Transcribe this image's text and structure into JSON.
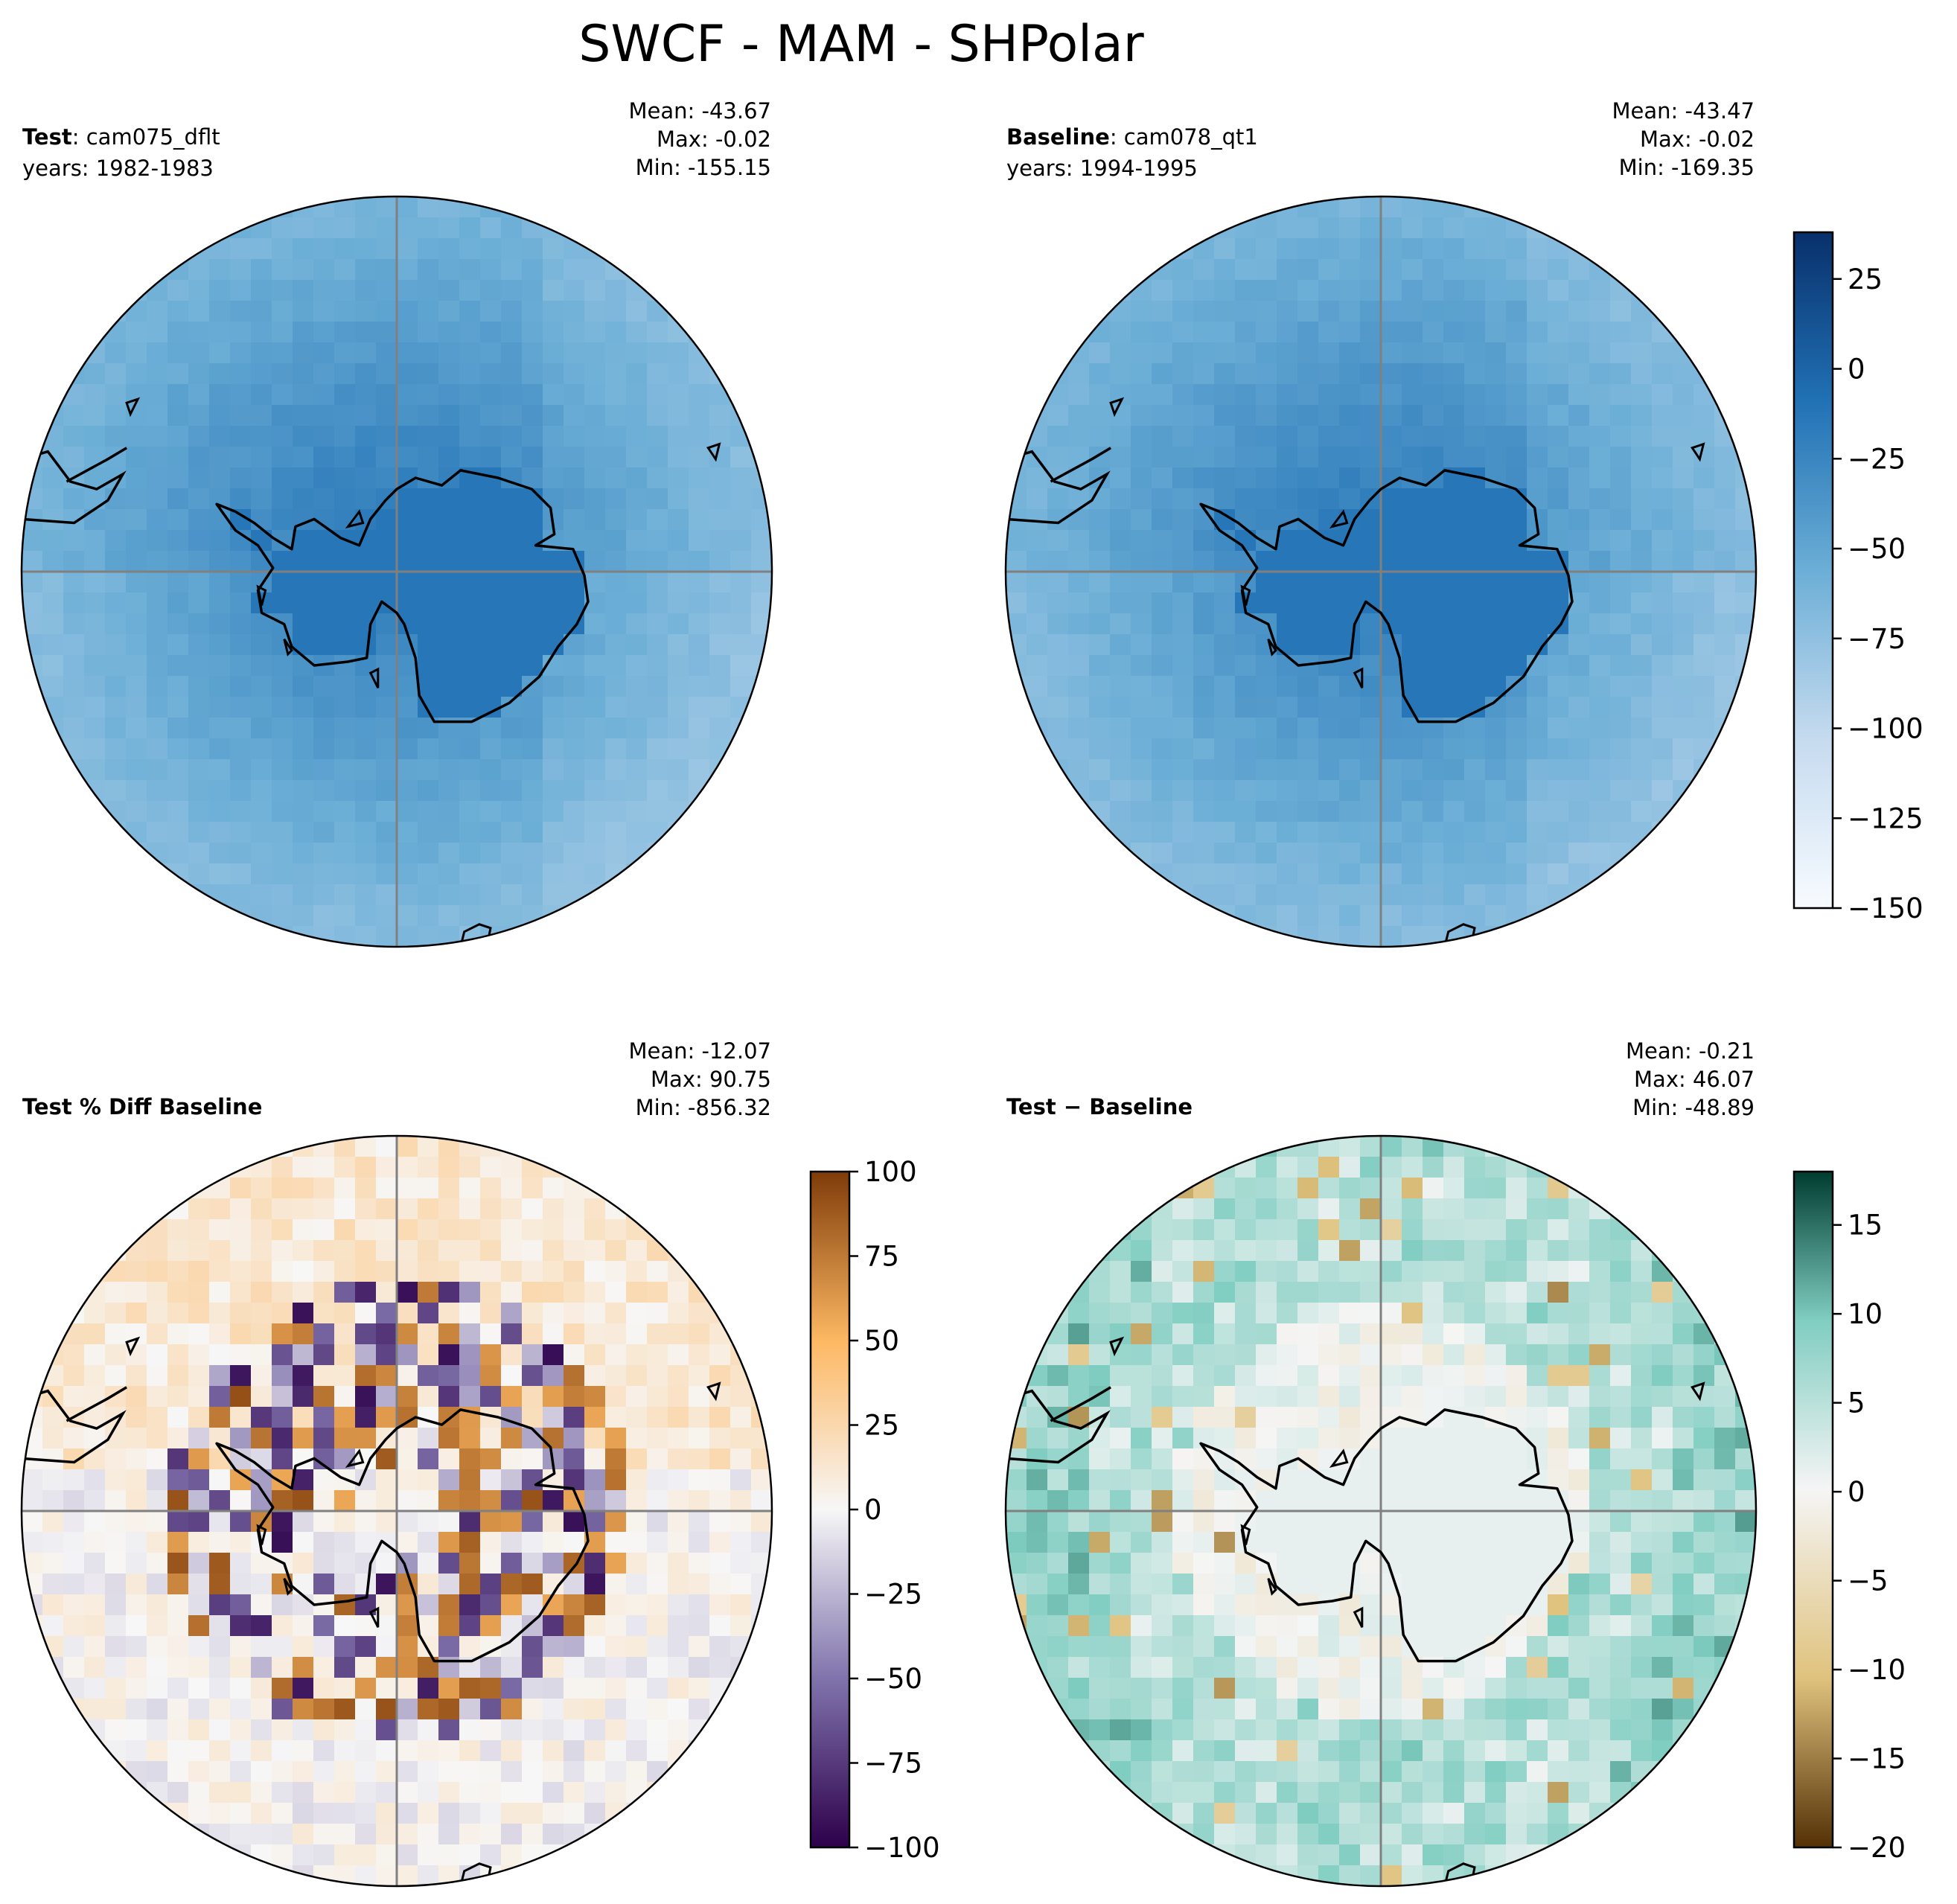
{
  "title": "SWCF - MAM - SHPolar",
  "chart_data": [
    {
      "type": "heatmap",
      "panel": "test",
      "label_bold": "Test",
      "label_rest": ": cam075_dflt",
      "years": "years: 1982-1983",
      "stats": [
        "Mean: -43.67",
        "Max: -0.02",
        "Min: -155.15"
      ],
      "projection": "south-polar-stereo",
      "colormap": "Blues_r",
      "pattern": "swcf",
      "seed": 11
    },
    {
      "type": "heatmap",
      "panel": "baseline",
      "label_bold": "Baseline",
      "label_rest": ": cam078_qt1",
      "years": "years: 1994-1995",
      "stats": [
        "Mean: -43.47",
        "Max: -0.02",
        "Min: -169.35"
      ],
      "projection": "south-polar-stereo",
      "colormap": "Blues_r",
      "pattern": "swcf",
      "seed": 23,
      "colorbar": {
        "ticks": [
          "25",
          "0",
          "−25",
          "−50",
          "−75",
          "−100",
          "−125",
          "−150"
        ],
        "tick_values": [
          25,
          0,
          -25,
          -50,
          -75,
          -100,
          -125,
          -150
        ],
        "range": [
          -150,
          38
        ]
      }
    },
    {
      "type": "heatmap",
      "panel": "pctdiff",
      "label_bold": "Test % Diff Baseline",
      "label_rest": "",
      "years": "",
      "stats": [
        "Mean: -12.07",
        "Max: 90.75",
        "Min: -856.32"
      ],
      "projection": "south-polar-stereo",
      "colormap": "PuOr",
      "pattern": "pctdiff",
      "seed": 37,
      "colorbar": {
        "ticks": [
          "100",
          "75",
          "50",
          "25",
          "0",
          "−25",
          "−50",
          "−75",
          "−100"
        ],
        "tick_values": [
          100,
          75,
          50,
          25,
          0,
          -25,
          -50,
          -75,
          -100
        ],
        "range": [
          -100,
          100
        ]
      }
    },
    {
      "type": "heatmap",
      "panel": "diff",
      "label_bold": "Test − Baseline",
      "label_rest": "",
      "years": "",
      "stats": [
        "Mean: -0.21",
        "Max: 46.07",
        "Min: -48.89"
      ],
      "projection": "south-polar-stereo",
      "colormap": "BrBG",
      "pattern": "diff",
      "seed": 53,
      "colorbar": {
        "ticks": [
          "15",
          "10",
          "5",
          "0",
          "−5",
          "−10",
          "−15",
          "−20"
        ],
        "tick_values": [
          15,
          10,
          5,
          0,
          -5,
          -10,
          -15,
          -20
        ],
        "range": [
          -20,
          18
        ]
      }
    }
  ],
  "colors": {
    "coastline": "#000000",
    "gridline": "#808080"
  }
}
